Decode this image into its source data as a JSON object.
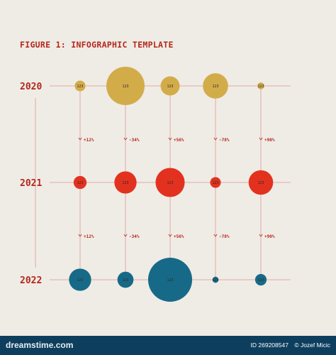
{
  "title": "FIGURE 1: INFOGRAPHIC TEMPLATE",
  "bubble_label": "123",
  "years": [
    "2020",
    "2021",
    "2022"
  ],
  "row_colors": [
    "#d3ac4a",
    "#e2321f",
    "#176a87"
  ],
  "text_color": "#b5271b",
  "line_color": "#e4a9a1",
  "rows": [
    {
      "year": "2020",
      "relative_sizes": [
        0.28,
        1.0,
        0.5,
        0.66,
        0.18
      ]
    },
    {
      "year": "2021",
      "relative_sizes": [
        0.34,
        0.58,
        0.76,
        0.28,
        0.64
      ]
    },
    {
      "year": "2022",
      "relative_sizes": [
        0.58,
        0.42,
        1.15,
        0.16,
        0.3
      ]
    }
  ],
  "changes": [
    [
      "+12%",
      "-34%",
      "+56%",
      "-78%",
      "+90%"
    ],
    [
      "+12%",
      "-34%",
      "+56%",
      "-78%",
      "+90%"
    ]
  ],
  "footer": {
    "brand": "dreamstime.com",
    "id_text": "ID 269208547",
    "credit": "© Jozef Micic"
  }
}
